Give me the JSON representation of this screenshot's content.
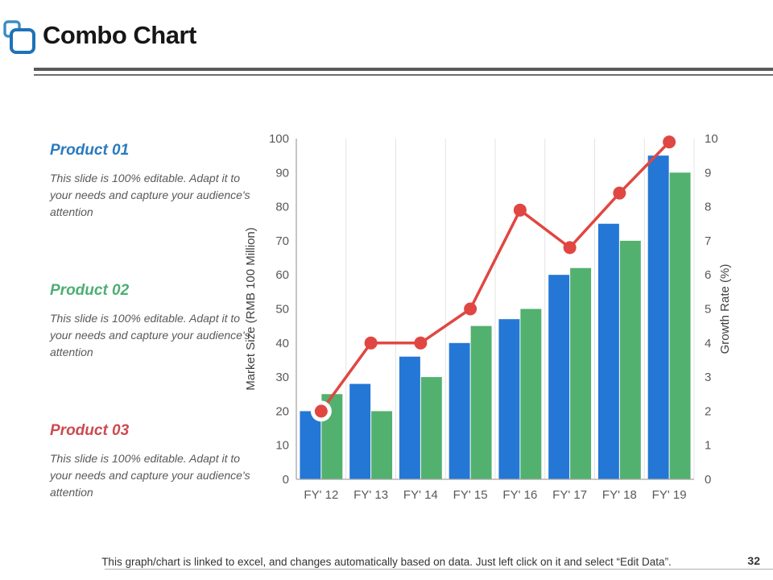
{
  "slide": {
    "title": "Combo Chart",
    "page_number": "32",
    "footer_note": "This graph/chart is linked to excel, and changes automatically based on data. Just left click on it and select “Edit Data”."
  },
  "products": [
    {
      "name": "Product 01",
      "color": "#2a7abe",
      "description": "This slide is 100% editable. Adapt it to your needs and capture your audience's attention"
    },
    {
      "name": "Product 02",
      "color": "#4caf72",
      "description": "This slide is 100% editable. Adapt it to your needs and capture your audience's attention"
    },
    {
      "name": "Product 03",
      "color": "#cc4a50",
      "description": "This slide is 100% editable. Adapt it to your needs and capture your audience's attention"
    }
  ],
  "chart_data": {
    "type": "combo",
    "categories": [
      "FY' 12",
      "FY' 13",
      "FY' 14",
      "FY' 15",
      "FY' 16",
      "FY' 17",
      "FY' 18",
      "FY' 19"
    ],
    "series": [
      {
        "name": "blue-bars",
        "type": "bar",
        "axis": "left",
        "color": "#2477d5",
        "values": [
          20,
          28,
          36,
          40,
          47,
          60,
          75,
          95
        ]
      },
      {
        "name": "green-bars",
        "type": "bar",
        "axis": "left",
        "color": "#52b16e",
        "values": [
          25,
          20,
          30,
          45,
          50,
          62,
          70,
          90
        ]
      },
      {
        "name": "red-line",
        "type": "line",
        "axis": "right",
        "color": "#e04742",
        "values": [
          2,
          4,
          4,
          5,
          7.9,
          6.8,
          8.4,
          9.9
        ],
        "highlight_index": 0
      }
    ],
    "left_axis": {
      "label": "Market Size (RMB 100 Million)",
      "min": 0,
      "max": 100,
      "step": 10
    },
    "right_axis": {
      "label": "Growth Rate (%)",
      "min": 0,
      "max": 10,
      "step": 1
    },
    "grid": "vertical",
    "legend": "none",
    "colors": {
      "gridline": "#e3e3e3",
      "axis": "#a6a6a6",
      "tick_text": "#595959"
    }
  }
}
